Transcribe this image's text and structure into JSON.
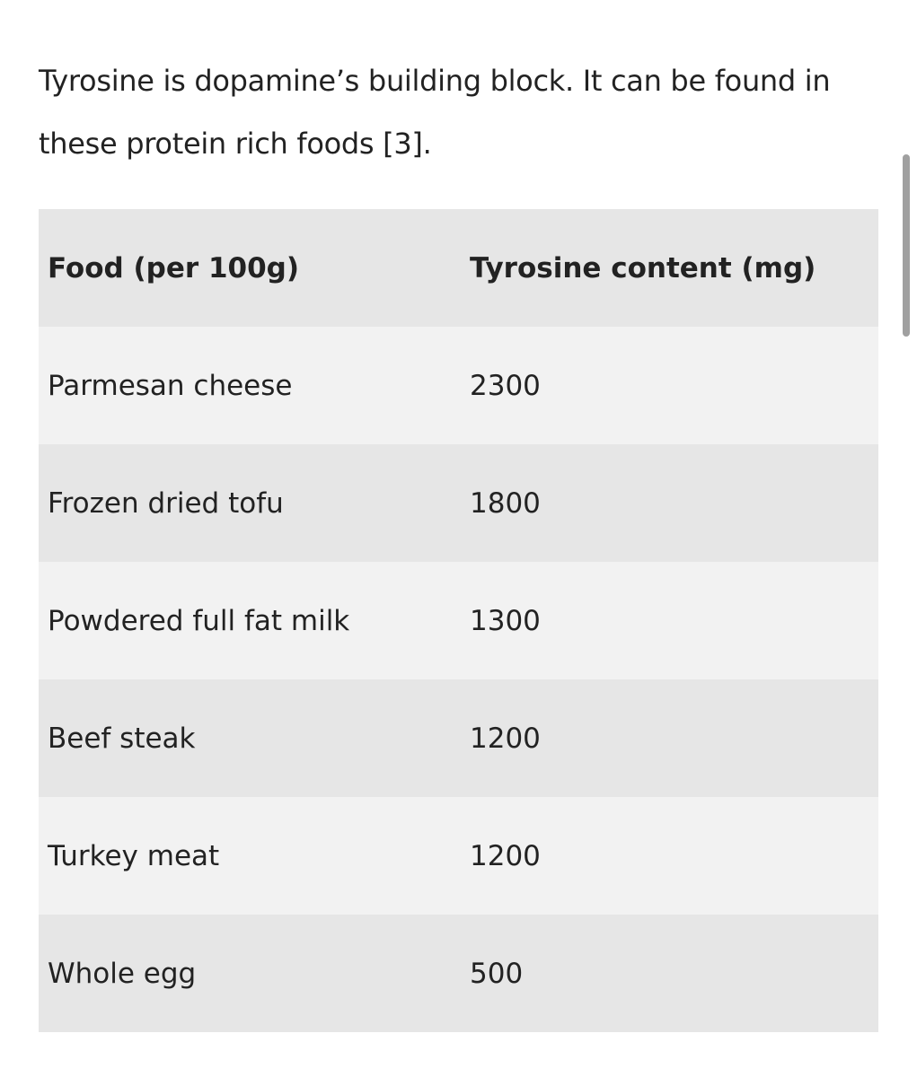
{
  "paragraph": "Tyrosine is dopamine’s building block. It can be found in these protein rich foods [3].",
  "table": {
    "header": [
      "Food (per 100g)",
      "Tyrosine content (mg)"
    ],
    "rows": [
      [
        "Parmesan cheese",
        2300
      ],
      [
        "Frozen dried tofu",
        1800
      ],
      [
        "Powdered full fat milk",
        1300
      ],
      [
        "Beef steak",
        1200
      ],
      [
        "Turkey meat",
        1200
      ],
      [
        "Whole egg",
        500
      ]
    ]
  }
}
